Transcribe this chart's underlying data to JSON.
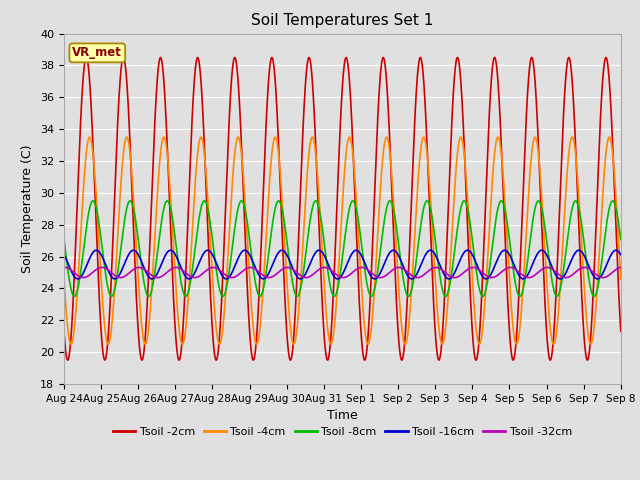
{
  "title": "Soil Temperatures Set 1",
  "xlabel": "Time",
  "ylabel": "Soil Temperature (C)",
  "ylim": [
    18,
    40
  ],
  "yticks": [
    18,
    20,
    22,
    24,
    26,
    28,
    30,
    32,
    34,
    36,
    38,
    40
  ],
  "bg_color": "#e0e0e0",
  "tick_label_fontsize": 7.5,
  "tick_labels": [
    "Aug 24",
    "Aug 25",
    "Aug 26",
    "Aug 27",
    "Aug 28",
    "Aug 29",
    "Aug 30",
    "Aug 31",
    "Sep 1",
    "Sep 2",
    "Sep 3",
    "Sep 4",
    "Sep 5",
    "Sep 6",
    "Sep 7",
    "Sep 8"
  ],
  "legend_colors": [
    "#cc0000",
    "#ff8800",
    "#00bb00",
    "#0000cc",
    "#bb00bb"
  ],
  "legend_labels": [
    "Tsoil -2cm",
    "Tsoil -4cm",
    "Tsoil -8cm",
    "Tsoil -16cm",
    "Tsoil -32cm"
  ],
  "annotation_text": "VR_met",
  "annotation_color": "#8b0000",
  "annotation_bg": "#ffffaa",
  "annotation_border": "#aa8800",
  "params": [
    {
      "base": 29.0,
      "amp": 9.5,
      "phase": 0.0,
      "color": "#cc0000"
    },
    {
      "base": 27.0,
      "amp": 6.5,
      "phase": 0.09,
      "color": "#ff8800"
    },
    {
      "base": 26.5,
      "amp": 3.0,
      "phase": 0.18,
      "color": "#00bb00"
    },
    {
      "base": 25.5,
      "amp": 0.9,
      "phase": 0.27,
      "color": "#0000cc"
    },
    {
      "base": 25.0,
      "amp": 0.32,
      "phase": 0.42,
      "color": "#bb00bb"
    }
  ],
  "n_days": 15,
  "pts_per_day": 96
}
